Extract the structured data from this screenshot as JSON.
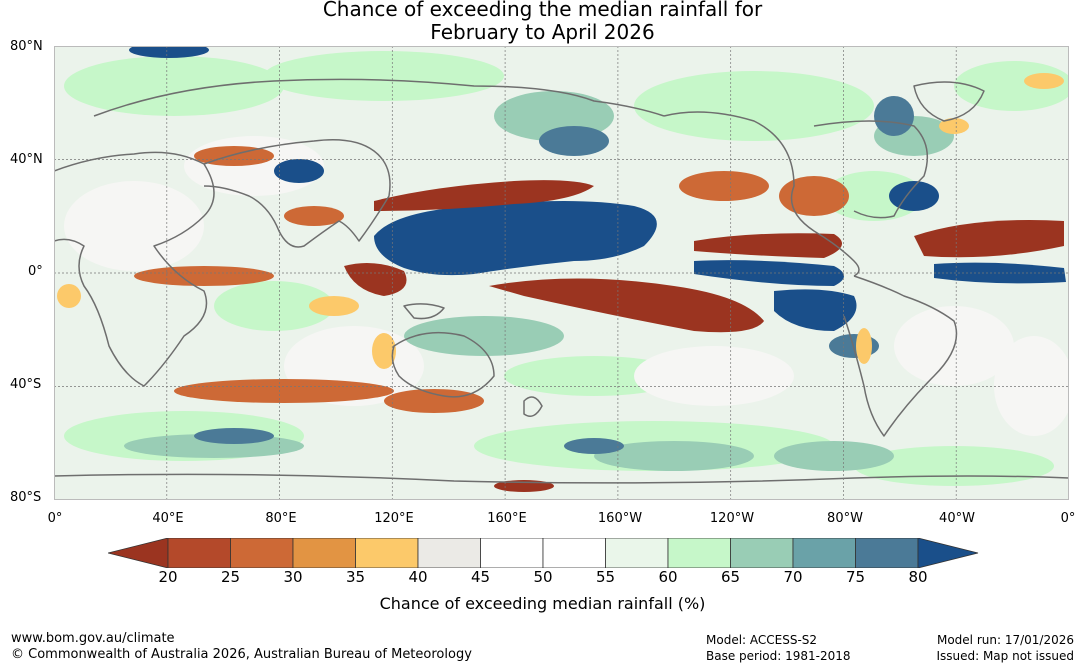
{
  "title_line1": "Chance of exceeding the median rainfall for",
  "title_line2": "February to April 2026",
  "lat_labels": [
    "80°N",
    "40°N",
    "0°",
    "40°S",
    "80°S"
  ],
  "lon_labels": [
    "0°",
    "40°E",
    "80°E",
    "120°E",
    "160°E",
    "160°W",
    "120°W",
    "80°W",
    "40°W",
    "0°"
  ],
  "colorbar": {
    "ticks": [
      "20",
      "25",
      "30",
      "35",
      "40",
      "45",
      "50",
      "55",
      "60",
      "65",
      "70",
      "75",
      "80"
    ],
    "colors": [
      "#9b3420",
      "#b4492a",
      "#cd6936",
      "#e29443",
      "#fcc96a",
      "#ebeae6",
      "#ffffff",
      "#ffffff",
      "#eaf6ea",
      "#c6f7c9",
      "#99cdb5",
      "#6aa2a8",
      "#4b7a97",
      "#1a4f8a"
    ],
    "label": "Chance of exceeding median rainfall (%)"
  },
  "footer": {
    "url": "www.bom.gov.au/climate",
    "copyright": "© Commonwealth of Australia 2026, Australian Bureau of Meteorology",
    "model": "Model: ACCESS-S2",
    "base_period": "Base period: 1981-2018",
    "model_run": "Model run: 17/01/2026",
    "issued": "Issued: Map not issued"
  }
}
